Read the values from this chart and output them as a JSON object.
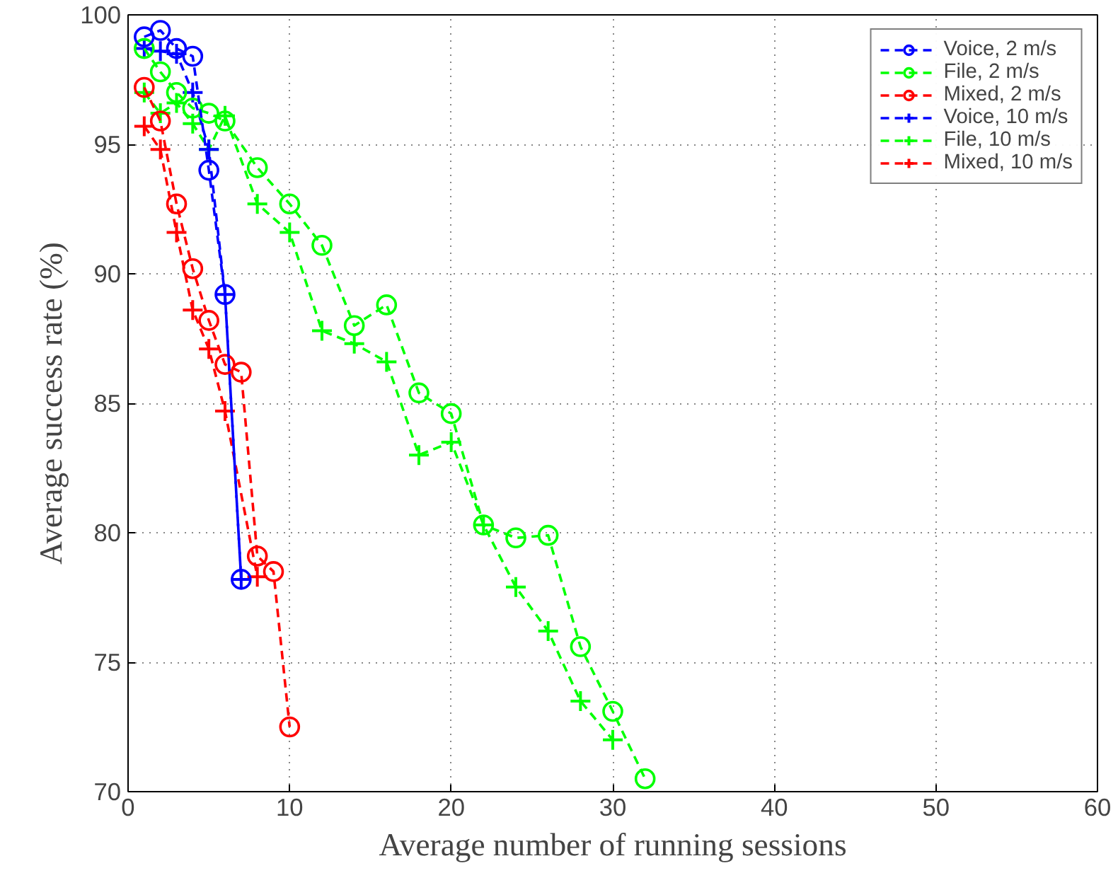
{
  "chart_data": {
    "type": "line",
    "xlabel": "Average number of running sessions",
    "ylabel": "Average success rate (%)",
    "xlim": [
      0,
      60
    ],
    "ylim": [
      70,
      100
    ],
    "xticks": [
      0,
      10,
      20,
      30,
      40,
      50,
      60
    ],
    "yticks": [
      70,
      75,
      80,
      85,
      90,
      95,
      100
    ],
    "grid": true,
    "legend": "top right",
    "line_style": "dashed",
    "series": [
      {
        "name": "Voice, 2 m/s",
        "color": "#0000ff",
        "marker": "circle",
        "x": [
          1,
          2,
          3,
          4,
          5,
          6,
          7
        ],
        "values": [
          99.15,
          99.4,
          98.7,
          98.4,
          94.0,
          89.2,
          78.2
        ]
      },
      {
        "name": "File, 2 m/s",
        "color": "#00ff00",
        "marker": "circle",
        "x": [
          1,
          2,
          3,
          4,
          5,
          6,
          8,
          10,
          12,
          14,
          16,
          18,
          20,
          22,
          24,
          26,
          28,
          30,
          32
        ],
        "values": [
          98.7,
          97.8,
          97.0,
          96.4,
          96.2,
          95.9,
          94.1,
          92.7,
          91.1,
          88.0,
          88.8,
          85.4,
          84.6,
          80.3,
          79.8,
          79.9,
          75.6,
          73.1,
          70.5
        ]
      },
      {
        "name": "Mixed, 2 m/s",
        "color": "#ff0000",
        "marker": "circle",
        "x": [
          1,
          2,
          3,
          4,
          5,
          6,
          7,
          8,
          9,
          10
        ],
        "values": [
          97.2,
          95.9,
          92.7,
          90.2,
          88.2,
          86.5,
          86.2,
          79.1,
          78.5,
          72.5
        ]
      },
      {
        "name": "Voice, 10 m/s",
        "color": "#0000ff",
        "marker": "cross",
        "x": [
          1,
          2,
          3,
          4,
          5,
          6,
          7
        ],
        "values": [
          98.7,
          98.6,
          98.5,
          97.0,
          94.8,
          89.2,
          78.2
        ]
      },
      {
        "name": "File, 10 m/s",
        "color": "#00ff00",
        "marker": "cross",
        "x": [
          1,
          2,
          3,
          4,
          5,
          6,
          8,
          10,
          12,
          14,
          16,
          18,
          20,
          22,
          24,
          26,
          28,
          30
        ],
        "values": [
          97.0,
          96.2,
          96.6,
          95.8,
          94.8,
          96.1,
          92.7,
          91.6,
          87.8,
          87.3,
          86.6,
          83.0,
          83.5,
          80.3,
          77.9,
          76.2,
          73.5,
          72.0
        ]
      },
      {
        "name": "Mixed, 10 m/s",
        "color": "#ff0000",
        "marker": "cross",
        "x": [
          1,
          2,
          3,
          4,
          5,
          6,
          8
        ],
        "values": [
          95.7,
          94.8,
          91.6,
          88.6,
          87.1,
          84.7,
          78.3
        ]
      }
    ]
  }
}
